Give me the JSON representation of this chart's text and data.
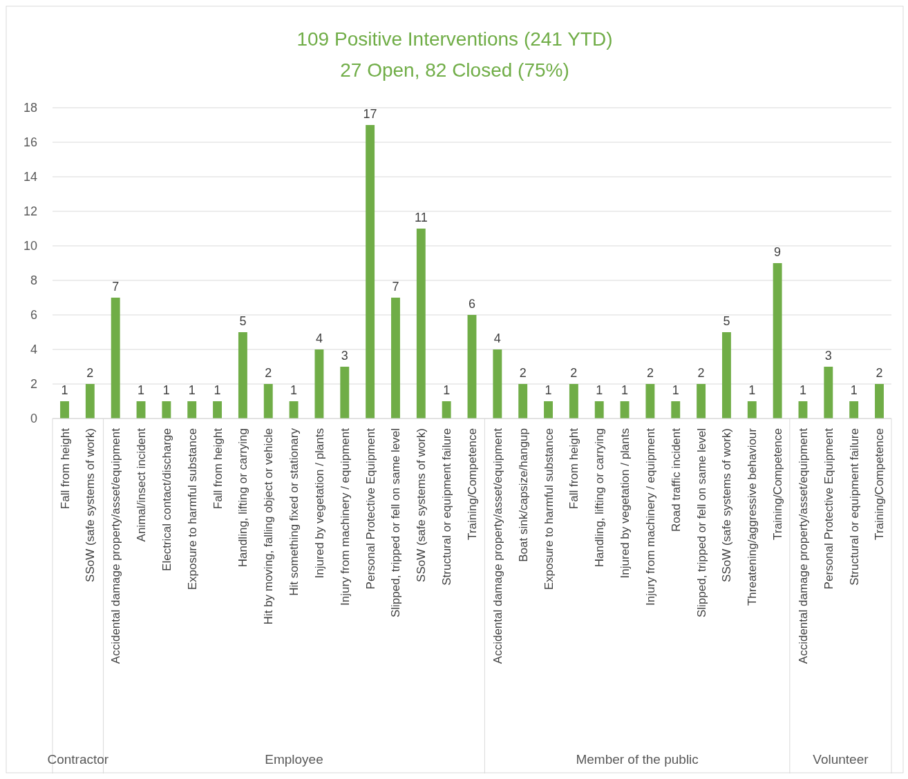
{
  "chart_data": {
    "type": "bar",
    "title": "109 Positive Interventions (241 YTD)",
    "subtitle": "27 Open, 82 Closed (75%)",
    "categories": [
      "Fall from height",
      "SSoW (safe systems of work)",
      "Accidental damage property/asset/equipment",
      "Animal/insect incident",
      "Electrical contact/discharge",
      "Exposure to harmful substance",
      "Fall from height",
      "Handling, lifting or carrying",
      "Hit by moving, falling object or vehicle",
      "Hit something fixed or stationary",
      "Injured by vegetation / plants",
      "Injury from machinery / equipment",
      "Personal Protective Equipment",
      "Slipped, tripped or fell on same level",
      "SSoW (safe systems of work)",
      "Structural or equipment failure",
      "Training/Competence",
      "Accidental damage property/asset/equipment",
      "Boat sink/capsize/hangup",
      "Exposure to harmful substance",
      "Fall from height",
      "Handling, lifting or carrying",
      "Injured by vegetation / plants",
      "Injury from machinery / equipment",
      "Road traffic incident",
      "Slipped, tripped or fell on same level",
      "SSoW (safe systems of work)",
      "Threatening/aggressive behaviour",
      "Training/Competence",
      "Accidental damage property/asset/equipment",
      "Personal Protective Equipment",
      "Structural or equipment failure",
      "Training/Competence"
    ],
    "values": [
      1,
      2,
      7,
      1,
      1,
      1,
      1,
      5,
      2,
      1,
      4,
      3,
      17,
      7,
      11,
      1,
      6,
      4,
      2,
      1,
      2,
      1,
      1,
      2,
      1,
      2,
      5,
      1,
      9,
      1,
      3,
      1,
      2
    ],
    "color": "#70ad47",
    "ylim": [
      0,
      18
    ],
    "yticks": [
      0,
      2,
      4,
      6,
      8,
      10,
      12,
      14,
      16,
      18
    ],
    "grid": "y",
    "data_labels": true,
    "annotations": [
      "Contractor",
      "Employee",
      "Member of the public",
      "Volunteer"
    ]
  }
}
